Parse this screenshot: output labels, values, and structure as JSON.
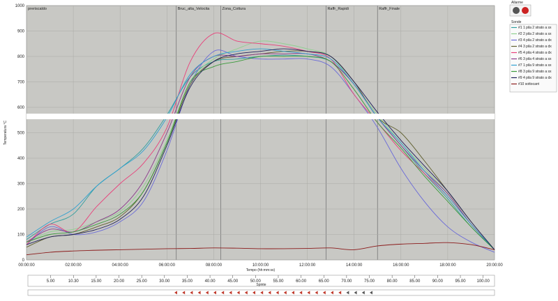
{
  "chart_data": {
    "type": "line",
    "ylabel": "Temperatura °C",
    "xlabel": "Tempo (hh:mm:ss)",
    "ylim": [
      0,
      1000
    ],
    "y_ticks": [
      "0",
      "100",
      "200",
      "300",
      "400",
      "500",
      "600",
      "700",
      "800",
      "900",
      "1000"
    ],
    "x_ticks": [
      "00:00:00",
      "02:00:00",
      "04:00:00",
      "06:00:00",
      "08:00:00",
      "10:00:00",
      "12:00:00",
      "14:00:00",
      "16:00:00",
      "18:00:00",
      "20:00:00"
    ],
    "grid": true,
    "legend_position": "right",
    "phases": [
      {
        "label": "preriscaldo",
        "start_h": 0
      },
      {
        "label": "Bruc_alta_Velocita",
        "start_h": 6.4
      },
      {
        "label": "Zona_Cottura",
        "start_h": 8.3
      },
      {
        "label": "Raffr_Rapidi",
        "start_h": 12.8
      },
      {
        "label": "Raffr_Finale",
        "start_h": 15.0
      }
    ],
    "x_hours": [
      0,
      1,
      2,
      3,
      4,
      5,
      6,
      7,
      8,
      9,
      10,
      11,
      12,
      13,
      14,
      15,
      16,
      17,
      18,
      19,
      20
    ],
    "series": [
      {
        "name": "#1 1 pila 2 strato a sx",
        "color": "#2f9e9e",
        "values": [
          80,
          140,
          180,
          290,
          360,
          440,
          570,
          720,
          780,
          790,
          800,
          805,
          800,
          780,
          690,
          560,
          450,
          340,
          240,
          130,
          40
        ]
      },
      {
        "name": "#2 2 pila 2 strato a sx",
        "color": "#8fd08f",
        "values": [
          70,
          110,
          120,
          150,
          190,
          290,
          470,
          700,
          790,
          830,
          860,
          850,
          830,
          800,
          690,
          570,
          460,
          360,
          260,
          140,
          40
        ]
      },
      {
        "name": "#3 4 pila 2 strato a dx",
        "color": "#6a6ad8",
        "values": [
          60,
          130,
          100,
          110,
          150,
          230,
          430,
          690,
          820,
          800,
          790,
          790,
          790,
          760,
          650,
          520,
          360,
          230,
          130,
          70,
          30
        ]
      },
      {
        "name": "#4 3 pila 2 strato a dx",
        "color": "#606030",
        "values": [
          50,
          90,
          100,
          130,
          170,
          270,
          460,
          690,
          780,
          800,
          810,
          820,
          820,
          800,
          700,
          560,
          500,
          390,
          270,
          150,
          40
        ]
      },
      {
        "name": "#5 4 pila 4 strato a dx",
        "color": "#e8407a",
        "values": [
          60,
          140,
          110,
          210,
          300,
          380,
          520,
          780,
          890,
          860,
          850,
          840,
          820,
          790,
          650,
          540,
          430,
          340,
          250,
          140,
          40
        ]
      },
      {
        "name": "#6 3 pila 4 strato a sx",
        "color": "#8a3a8a",
        "values": [
          70,
          120,
          110,
          150,
          200,
          310,
          500,
          720,
          800,
          800,
          810,
          810,
          810,
          780,
          690,
          560,
          450,
          350,
          260,
          140,
          40
        ]
      },
      {
        "name": "#7 1 pila 9 strato a sx",
        "color": "#30a0d0",
        "values": [
          90,
          150,
          200,
          290,
          360,
          430,
          560,
          730,
          800,
          820,
          830,
          820,
          810,
          790,
          690,
          560,
          460,
          350,
          250,
          140,
          40
        ]
      },
      {
        "name": "#8 3 pila 9 strato a sx",
        "color": "#3a9a3a",
        "values": [
          70,
          100,
          110,
          140,
          180,
          270,
          460,
          700,
          760,
          780,
          800,
          800,
          800,
          780,
          670,
          540,
          440,
          330,
          230,
          130,
          40
        ]
      },
      {
        "name": "#9 4 pila 9 strato a dx",
        "color": "#20205a",
        "values": [
          60,
          90,
          100,
          120,
          160,
          250,
          450,
          680,
          780,
          810,
          820,
          830,
          820,
          800,
          700,
          580,
          470,
          370,
          270,
          150,
          40
        ]
      },
      {
        "name": "#10 sottocarri",
        "color": "#8b1a1a",
        "values": [
          20,
          30,
          35,
          38,
          40,
          42,
          44,
          45,
          47,
          46,
          44,
          44,
          45,
          47,
          40,
          55,
          62,
          65,
          68,
          60,
          40
        ]
      }
    ]
  },
  "legend": {
    "title": "Sonde"
  },
  "alarms": {
    "title": "Allarme",
    "leds": [
      "#555555",
      "#cc2222"
    ]
  },
  "bottom_axis": {
    "label": "Spinte",
    "ticks": [
      "5.00",
      "10.30",
      "15.00",
      "20.00",
      "25.00",
      "30.00",
      "35.00",
      "40.00",
      "45.00",
      "50.00",
      "55.00",
      "60.00",
      "65.00",
      "70.00",
      "75.00",
      "80.00",
      "85.00",
      "90.00",
      "95.00",
      "100.00"
    ]
  }
}
